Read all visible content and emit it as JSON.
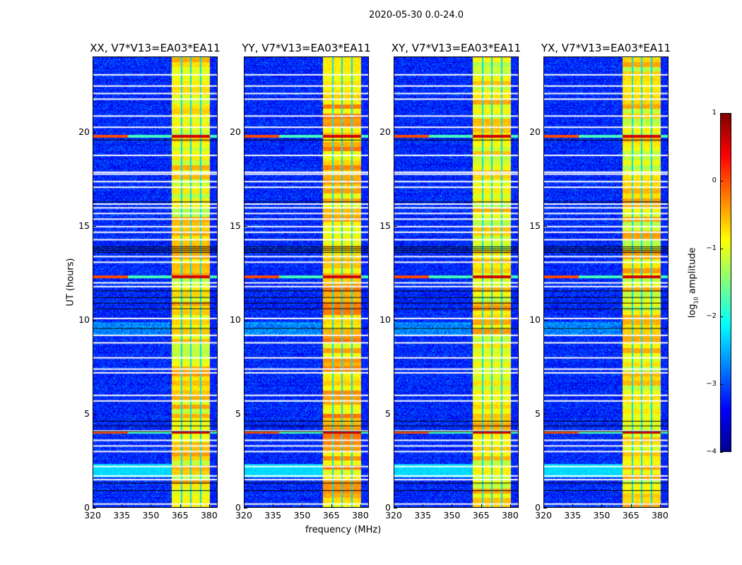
{
  "chart_data": {
    "type": "heatmap",
    "title": "2020-05-30 0.0-24.0",
    "xlabel": "frequency (MHz)",
    "ylabel": "UT (hours)",
    "xlim": [
      320,
      384.4
    ],
    "ylim": [
      0,
      24
    ],
    "xticks": [
      "320",
      "335",
      "350",
      "365",
      "380"
    ],
    "xtick_values": [
      320,
      335,
      350,
      365,
      380
    ],
    "yticks": [
      "0",
      "5",
      "10",
      "15",
      "20"
    ],
    "ytick_values": [
      0,
      5,
      10,
      15,
      20
    ],
    "panels": [
      {
        "title": "XX, V7*V13=EA03*EA11",
        "band_level": -0.8
      },
      {
        "title": "YY, V7*V13=EA03*EA11",
        "band_level": -0.6
      },
      {
        "title": "XY, V7*V13=EA03*EA11",
        "band_level": -0.8
      },
      {
        "title": "YX, V7*V13=EA03*EA11",
        "band_level": -0.8
      }
    ],
    "background_level": -3.2,
    "rfi_band_mhz": [
      360.7,
      380.4
    ],
    "band_gaps_mhz": [
      365.8,
      370.5,
      375.6
    ],
    "flagged_hours_white": [
      0.2,
      1.5,
      1.7,
      2.2,
      3.0,
      3.3,
      3.6,
      4.1,
      5.7,
      6.0,
      7.2,
      7.4,
      8.0,
      8.8,
      9.2,
      10.1,
      11.8,
      12.0,
      13.1,
      13.4,
      14.3,
      14.7,
      15.0,
      15.4,
      15.7,
      16.0,
      16.2,
      17.1,
      17.4,
      17.8,
      17.9,
      18.8,
      20.3,
      20.9,
      21.8,
      22.1,
      22.5,
      23.1
    ],
    "flagged_hours_black": [
      0.9,
      1.3,
      4.05,
      4.35,
      4.6,
      9.55,
      10.6,
      10.9,
      11.2,
      11.55,
      13.6,
      13.7,
      13.8,
      13.9,
      16.3,
      19.6
    ],
    "bright_hours": [
      12.3,
      19.8,
      4.0
    ],
    "colorbar": {
      "label": "log10 amplitude",
      "label_main": "log",
      "label_sub": "10",
      "label_rest": " amplitude",
      "ticks": [
        "1",
        "0",
        "−1",
        "−2",
        "−3",
        "−4"
      ],
      "tick_values": [
        1,
        0,
        -1,
        -2,
        -3,
        -4
      ],
      "range": [
        -4,
        1
      ],
      "colormap": "jet"
    }
  }
}
